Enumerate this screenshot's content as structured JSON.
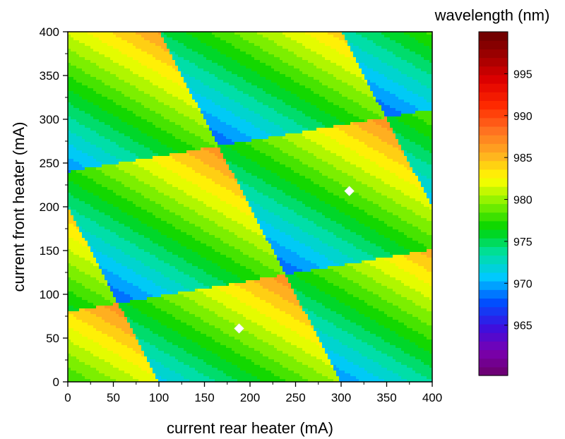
{
  "chart_data": {
    "type": "heatmap",
    "subtype": "filled-contour",
    "xlabel": "current rear heater (mA)",
    "ylabel": "current front heater (mA)",
    "xlim": [
      0,
      400
    ],
    "ylim": [
      0,
      400
    ],
    "x_ticks": [
      "0",
      "50",
      "100",
      "150",
      "200",
      "250",
      "300",
      "350",
      "400"
    ],
    "y_ticks": [
      "0",
      "50",
      "100",
      "150",
      "200",
      "250",
      "300",
      "350",
      "400"
    ],
    "colorbar": {
      "title": "wavelength (nm)",
      "range": [
        959,
        1000
      ],
      "ticks": [
        "965",
        "970",
        "975",
        "980",
        "985",
        "990",
        "995"
      ],
      "colormap": [
        "#6a006a",
        "#7a00b0",
        "#3a10e0",
        "#0050ff",
        "#00c8ff",
        "#00e0a0",
        "#00d400",
        "#80f000",
        "#ffff00",
        "#ffb020",
        "#ff7020",
        "#ff2a00",
        "#e00000",
        "#a00000",
        "#6a0000"
      ]
    },
    "markers": [
      {
        "x": 188,
        "y": 61
      },
      {
        "x": 309,
        "y": 218
      }
    ],
    "model": {
      "base_nm": 977.5,
      "half_period_nm": 5,
      "rear_modulation": {
        "period_mA": 200,
        "amplitude_nm": 11
      },
      "front_modulation": {
        "period_mA": 160,
        "amplitude_nm": 8
      }
    }
  }
}
